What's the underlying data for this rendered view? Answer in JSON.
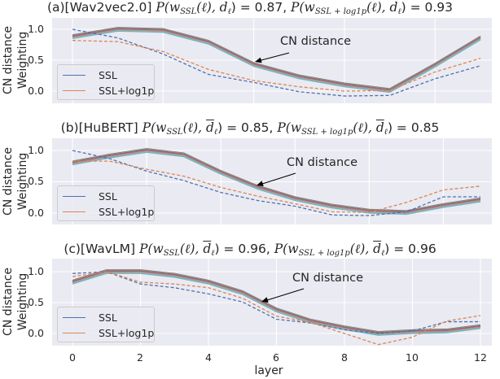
{
  "chart_data": [
    {
      "type": "line",
      "title": {
        "label": "(a)[Wav2vec2.0]",
        "p": "P(",
        "w": "w",
        "sub1": "SSL",
        "sub2": "SSL + log1p",
        "ell": "(ℓ), ",
        "d": "d",
        "dsub": "ℓ",
        "close": ") = ",
        "value1": "0.87",
        "value2": "0.93",
        "sep": ",  ",
        "overline_d": false
      },
      "ylabel": [
        "CN distance",
        "Weighting"
      ],
      "yticks": [
        "1.0",
        "0.5",
        "0.0"
      ],
      "ylim": [
        -0.2,
        1.2
      ],
      "x": [
        0,
        1,
        2,
        3,
        4,
        5,
        6,
        7,
        8,
        9
      ],
      "xlim": [
        0,
        9
      ],
      "grid_x": [
        0,
        2,
        4,
        6,
        8
      ],
      "series": [
        {
          "name": "CN distance",
          "style": "solid",
          "values": [
            0.88,
            1.0,
            0.98,
            0.79,
            0.43,
            0.23,
            0.1,
            0.01,
            0.42,
            0.86
          ]
        },
        {
          "name": "SSL",
          "style": "dashed",
          "color": "#4c72b0",
          "values": [
            1.0,
            0.86,
            0.6,
            0.27,
            0.14,
            -0.01,
            -0.08,
            -0.07,
            0.2,
            0.41
          ]
        },
        {
          "name": "SSL+log1p",
          "style": "dashed",
          "color": "#dd8452",
          "values": [
            0.82,
            0.8,
            0.64,
            0.35,
            0.17,
            0.07,
            0.0,
            0.01,
            0.31,
            0.53
          ]
        }
      ],
      "legend": [
        "SSL",
        "SSL+log1p"
      ],
      "legend_position": "lower-left",
      "annotation": "CN distance"
    },
    {
      "type": "line",
      "title": {
        "label": "(b)[HuBERT]",
        "p": "P(",
        "w": "w",
        "sub1": "SSL",
        "sub2": "SSL + log1p",
        "ell": "(ℓ), ",
        "d": "d",
        "dsub": "ℓ",
        "close": ") = ",
        "value1": "0.85",
        "value2": "0.85",
        "sep": ",  ",
        "overline_d": true
      },
      "ylabel": [
        "CN distance",
        "Weighting"
      ],
      "yticks": [
        "1.0",
        "0.5",
        "0.0"
      ],
      "ylim": [
        -0.2,
        1.2
      ],
      "x": [
        0,
        1,
        2,
        3,
        4,
        5,
        6,
        7,
        8,
        9,
        10,
        11
      ],
      "xlim": [
        0,
        11
      ],
      "grid_x": [
        0,
        2,
        4,
        6,
        8,
        10
      ],
      "series": [
        {
          "name": "CN distance",
          "style": "solid",
          "values": [
            0.8,
            0.91,
            1.0,
            0.93,
            0.65,
            0.41,
            0.23,
            0.11,
            0.03,
            0.01,
            0.12,
            0.21
          ]
        },
        {
          "name": "SSL",
          "style": "dashed",
          "color": "#4c72b0",
          "values": [
            1.0,
            0.87,
            0.67,
            0.52,
            0.33,
            0.2,
            0.11,
            -0.03,
            -0.04,
            0.02,
            0.26,
            0.26
          ]
        },
        {
          "name": "SSL+log1p",
          "style": "dashed",
          "color": "#dd8452",
          "values": [
            0.83,
            0.83,
            0.7,
            0.59,
            0.41,
            0.27,
            0.15,
            0.02,
            0.01,
            0.17,
            0.37,
            0.43
          ]
        }
      ],
      "legend": [
        "SSL",
        "SSL+log1p"
      ],
      "legend_position": "lower-left",
      "annotation": "CN distance"
    },
    {
      "type": "line",
      "title": {
        "label": "(c)[WavLM]",
        "p": "P(",
        "w": "w",
        "sub1": "SSL",
        "sub2": "SSL + log1p",
        "ell": "(ℓ), ",
        "d": "d",
        "dsub": "ℓ",
        "close": ") = ",
        "value1": "0.96",
        "value2": "0.96",
        "sep": ",  ",
        "overline_d": true
      },
      "ylabel": [
        "CN distance",
        "Weighting"
      ],
      "yticks": [
        "1.0",
        "0.5",
        "0.0"
      ],
      "ylim": [
        -0.2,
        1.2
      ],
      "x": [
        0,
        1,
        2,
        3,
        4,
        5,
        6,
        7,
        8,
        9,
        10,
        11,
        12
      ],
      "xlim": [
        0,
        12
      ],
      "grid_x": [
        0,
        2,
        4,
        6,
        8,
        10,
        12
      ],
      "xticks": [
        "0",
        "2",
        "4",
        "6",
        "8",
        "10",
        "12"
      ],
      "xlabel": "layer",
      "series": [
        {
          "name": "CN distance",
          "style": "solid",
          "values": [
            0.83,
            1.0,
            1.0,
            0.94,
            0.83,
            0.66,
            0.38,
            0.2,
            0.09,
            0.0,
            0.03,
            0.04,
            0.11
          ]
        },
        {
          "name": "SSL",
          "style": "dashed",
          "color": "#4c72b0",
          "values": [
            0.97,
            1.0,
            0.8,
            0.74,
            0.64,
            0.51,
            0.23,
            0.17,
            0.06,
            0.0,
            0.04,
            0.19,
            0.19
          ]
        },
        {
          "name": "SSL+log1p",
          "style": "dashed",
          "color": "#dd8452",
          "values": [
            0.92,
            1.0,
            0.83,
            0.8,
            0.74,
            0.57,
            0.28,
            0.18,
            0.0,
            -0.18,
            -0.06,
            0.2,
            0.29
          ]
        }
      ],
      "legend": [
        "SSL",
        "SSL+log1p"
      ],
      "legend_position": "lower-left",
      "annotation": "CN distance"
    }
  ],
  "colors": {
    "background": "#eaeaf2",
    "grid": "#ffffff",
    "ssl": "#4c72b0",
    "ssl_log1p": "#dd8452",
    "cn_palette": [
      "#4c72b0",
      "#dd8452",
      "#55a868",
      "#c44e52",
      "#8172b3",
      "#937860",
      "#da8bc3",
      "#8c8c8c",
      "#ccb974",
      "#64b5cd"
    ]
  }
}
